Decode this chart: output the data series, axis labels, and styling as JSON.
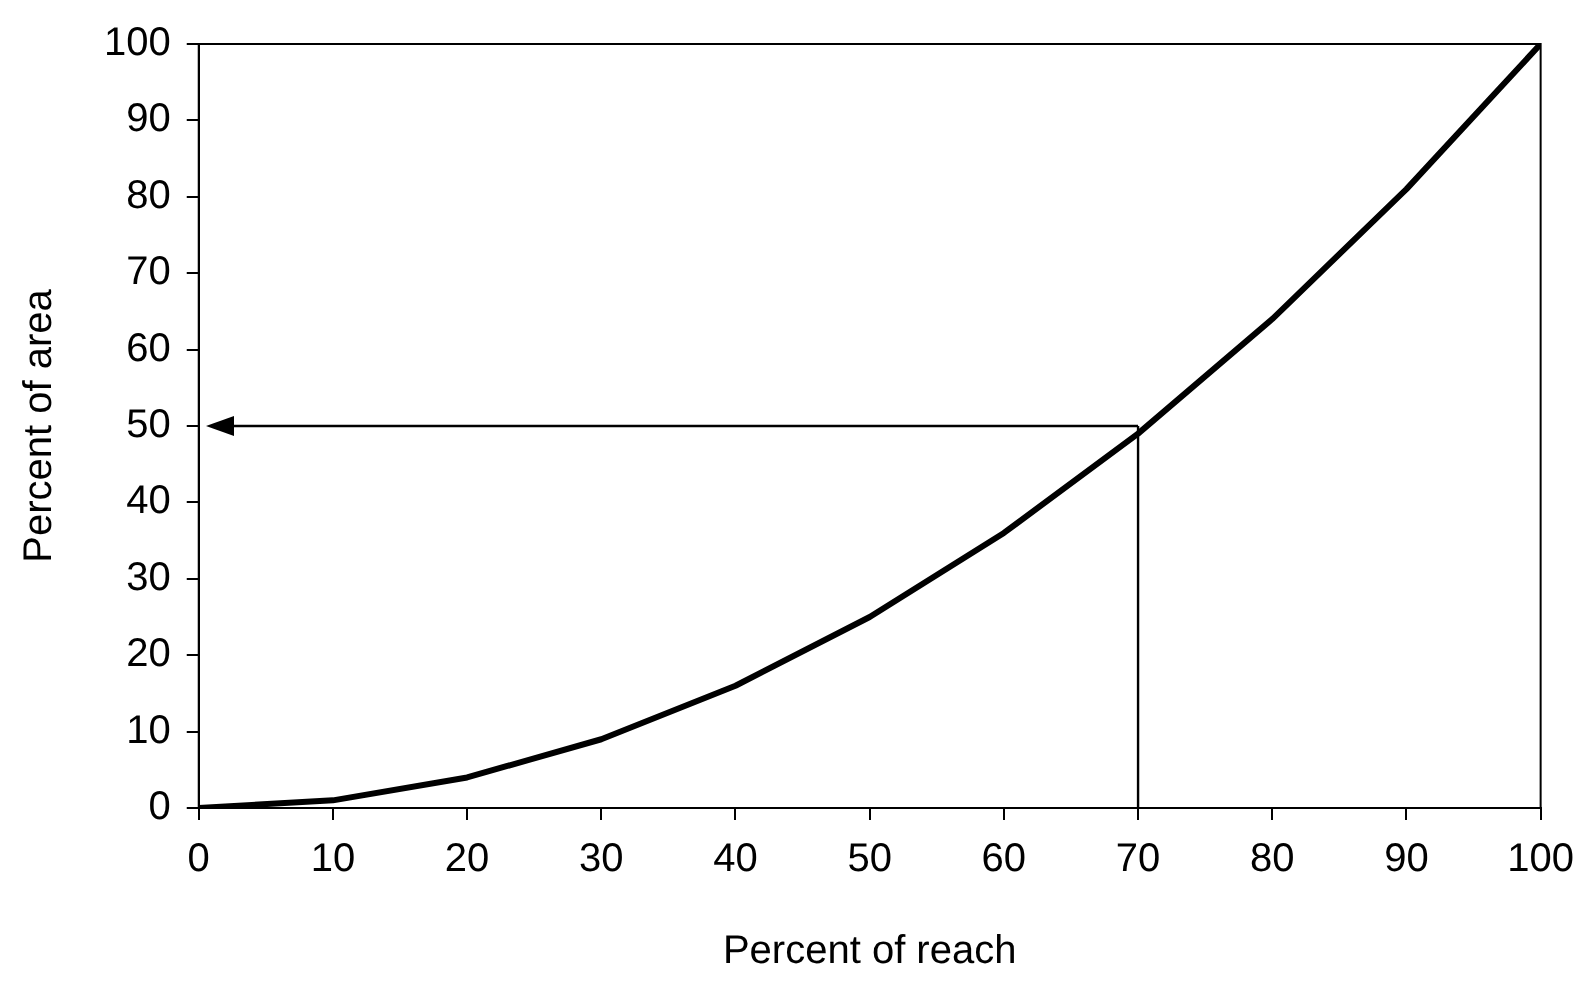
{
  "chart_data": {
    "type": "line",
    "xlabel": "Percent of reach",
    "ylabel": "Percent of area",
    "x": [
      0,
      10,
      20,
      30,
      40,
      50,
      60,
      70,
      80,
      90,
      100
    ],
    "series": [
      {
        "color": "#000000",
        "values": [
          0,
          1,
          4,
          9,
          16,
          25,
          36,
          49,
          64,
          81,
          100
        ]
      }
    ],
    "xlim": [
      0,
      100
    ],
    "xticks": [
      0,
      10,
      20,
      30,
      40,
      50,
      60,
      70,
      80,
      90,
      100
    ],
    "ylim": [
      0,
      100
    ],
    "yticks": [
      0,
      10,
      20,
      30,
      40,
      50,
      60,
      70,
      80,
      90,
      100
    ],
    "grid": false,
    "legend": false,
    "marker": "none",
    "line_style": "solid",
    "ref_lines": [
      {
        "axis": "x",
        "value": 70,
        "color": "#000000"
      },
      {
        "axis": "y",
        "value": 50,
        "color": "#000000"
      }
    ]
  }
}
